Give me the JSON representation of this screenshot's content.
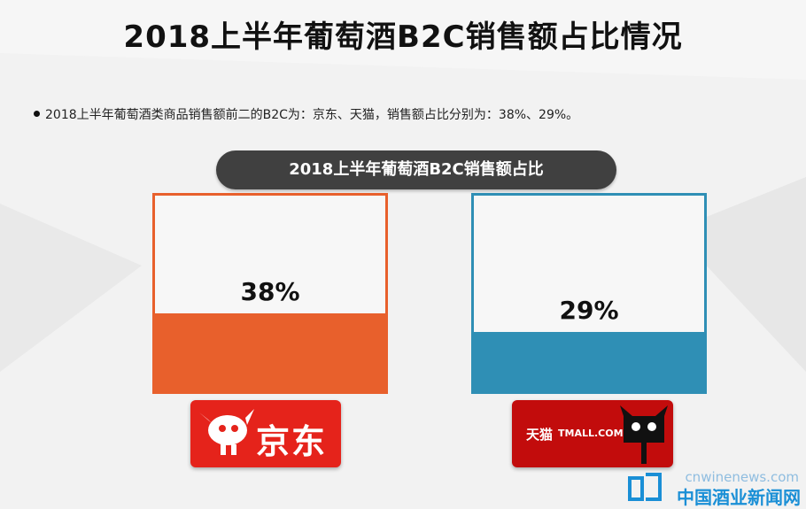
{
  "title": "2018上半年葡萄酒B2C销售额占比情况",
  "bullet_text": "2018上半年葡萄酒类商品销售额前二的B2C为：京东、天猫，销售额占比分别为：38%、29%。",
  "pill_label": "2018上半年葡萄酒B2C销售额占比",
  "colors": {
    "jd": "#e8602c",
    "tmall": "#2f8fb5",
    "jd_logo_bg": "#e5231b",
    "tmall_logo_bg": "#c20c0c"
  },
  "chart_data": {
    "type": "bar",
    "title": "2018上半年葡萄酒B2C销售额占比",
    "categories": [
      "京东",
      "天猫"
    ],
    "values": [
      38,
      29
    ],
    "value_labels": [
      "38%",
      "29%"
    ],
    "ylim": [
      0,
      100
    ]
  },
  "logos": {
    "jd_text": "京东",
    "tmall_cn": "天猫",
    "tmall_en": "TMALL.COM",
    "jd_icon": "jd-dog-mascot-icon",
    "tmall_icon": "tmall-cat-head-icon"
  },
  "watermark": {
    "en": "cnwinenews.com",
    "cn": "中国酒业新闻网",
    "icon": "cnwinenews-logo-icon"
  }
}
